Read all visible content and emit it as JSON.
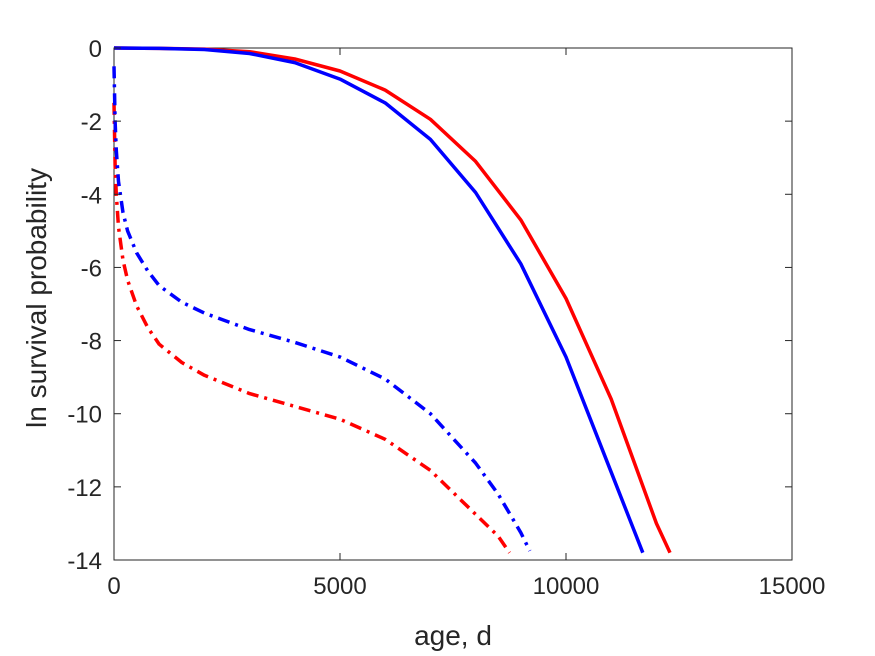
{
  "chart_data": {
    "type": "line",
    "title": "",
    "xlabel": "age, d",
    "ylabel": "ln survival probability",
    "xlim": [
      0,
      15000
    ],
    "ylim": [
      -14,
      0
    ],
    "xticks": [
      0,
      5000,
      10000,
      15000
    ],
    "yticks": [
      0,
      -2,
      -4,
      -6,
      -8,
      -10,
      -12,
      -14
    ],
    "xtick_labels": [
      "0",
      "5000",
      "10000",
      "15000"
    ],
    "ytick_labels": [
      "0",
      "-2",
      "-4",
      "-6",
      "-8",
      "-10",
      "-12",
      "-14"
    ],
    "grid": false,
    "legend": "none",
    "series": [
      {
        "color": "#ff0000",
        "style": "solid",
        "x": [
          0,
          1000,
          2000,
          3000,
          4000,
          5000,
          6000,
          7000,
          8000,
          9000,
          10000,
          11000,
          12000,
          12300
        ],
        "y": [
          0,
          -0.01,
          -0.03,
          -0.1,
          -0.3,
          -0.63,
          -1.15,
          -1.95,
          -3.1,
          -4.7,
          -6.85,
          -9.6,
          -13.0,
          -13.8
        ]
      },
      {
        "color": "#0000ff",
        "style": "solid",
        "x": [
          0,
          1000,
          2000,
          3000,
          4000,
          5000,
          6000,
          7000,
          8000,
          9000,
          10000,
          11000,
          11700
        ],
        "y": [
          0,
          -0.01,
          -0.04,
          -0.15,
          -0.4,
          -0.85,
          -1.5,
          -2.5,
          -3.95,
          -5.9,
          -8.45,
          -11.6,
          -13.8
        ]
      },
      {
        "color": "#ff0000",
        "style": "dashdot",
        "x": [
          0,
          25,
          50,
          100,
          200,
          300,
          500,
          750,
          1000,
          1500,
          2000,
          3000,
          4000,
          5000,
          6000,
          7000,
          8000,
          8500,
          8750
        ],
        "y": [
          -1.5,
          -3.2,
          -4.0,
          -4.9,
          -5.8,
          -6.35,
          -7.05,
          -7.65,
          -8.1,
          -8.6,
          -8.95,
          -9.45,
          -9.8,
          -10.15,
          -10.7,
          -11.55,
          -12.75,
          -13.35,
          -13.8
        ]
      },
      {
        "color": "#0000ff",
        "style": "dashdot",
        "x": [
          0,
          25,
          50,
          100,
          200,
          300,
          500,
          750,
          1000,
          1500,
          2000,
          3000,
          4000,
          5000,
          6000,
          7000,
          8000,
          8500,
          9000,
          9200
        ],
        "y": [
          -0.5,
          -2.0,
          -2.8,
          -3.65,
          -4.5,
          -5.0,
          -5.6,
          -6.1,
          -6.5,
          -6.95,
          -7.25,
          -7.7,
          -8.05,
          -8.45,
          -9.05,
          -10.0,
          -11.35,
          -12.2,
          -13.25,
          -13.75
        ]
      }
    ]
  }
}
